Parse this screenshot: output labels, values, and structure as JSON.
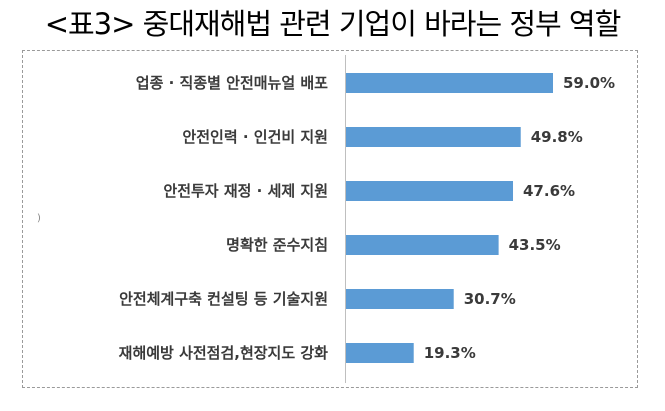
{
  "chart_data": {
    "type": "bar",
    "orientation": "horizontal",
    "title": "<표3> 중대재해법 관련 기업이 바라는 정부 역할",
    "categories": [
      "업종 · 직종별 안전매뉴얼 배포",
      "안전인력 · 인건비 지원",
      "안전투자 재정 · 세제 지원",
      "명확한 준수지침",
      "안전체계구축 컨설팅 등 기술지원",
      "재해예방 사전점검,현장지도 강화"
    ],
    "values": [
      59.0,
      49.8,
      47.6,
      43.5,
      30.7,
      19.3
    ],
    "value_labels": [
      "59.0%",
      "49.8%",
      "47.6%",
      "43.5%",
      "30.7%",
      "19.3%"
    ],
    "xlim": [
      0,
      60
    ],
    "grid": false,
    "legend": "none",
    "bar_color": "#5b9bd5"
  }
}
